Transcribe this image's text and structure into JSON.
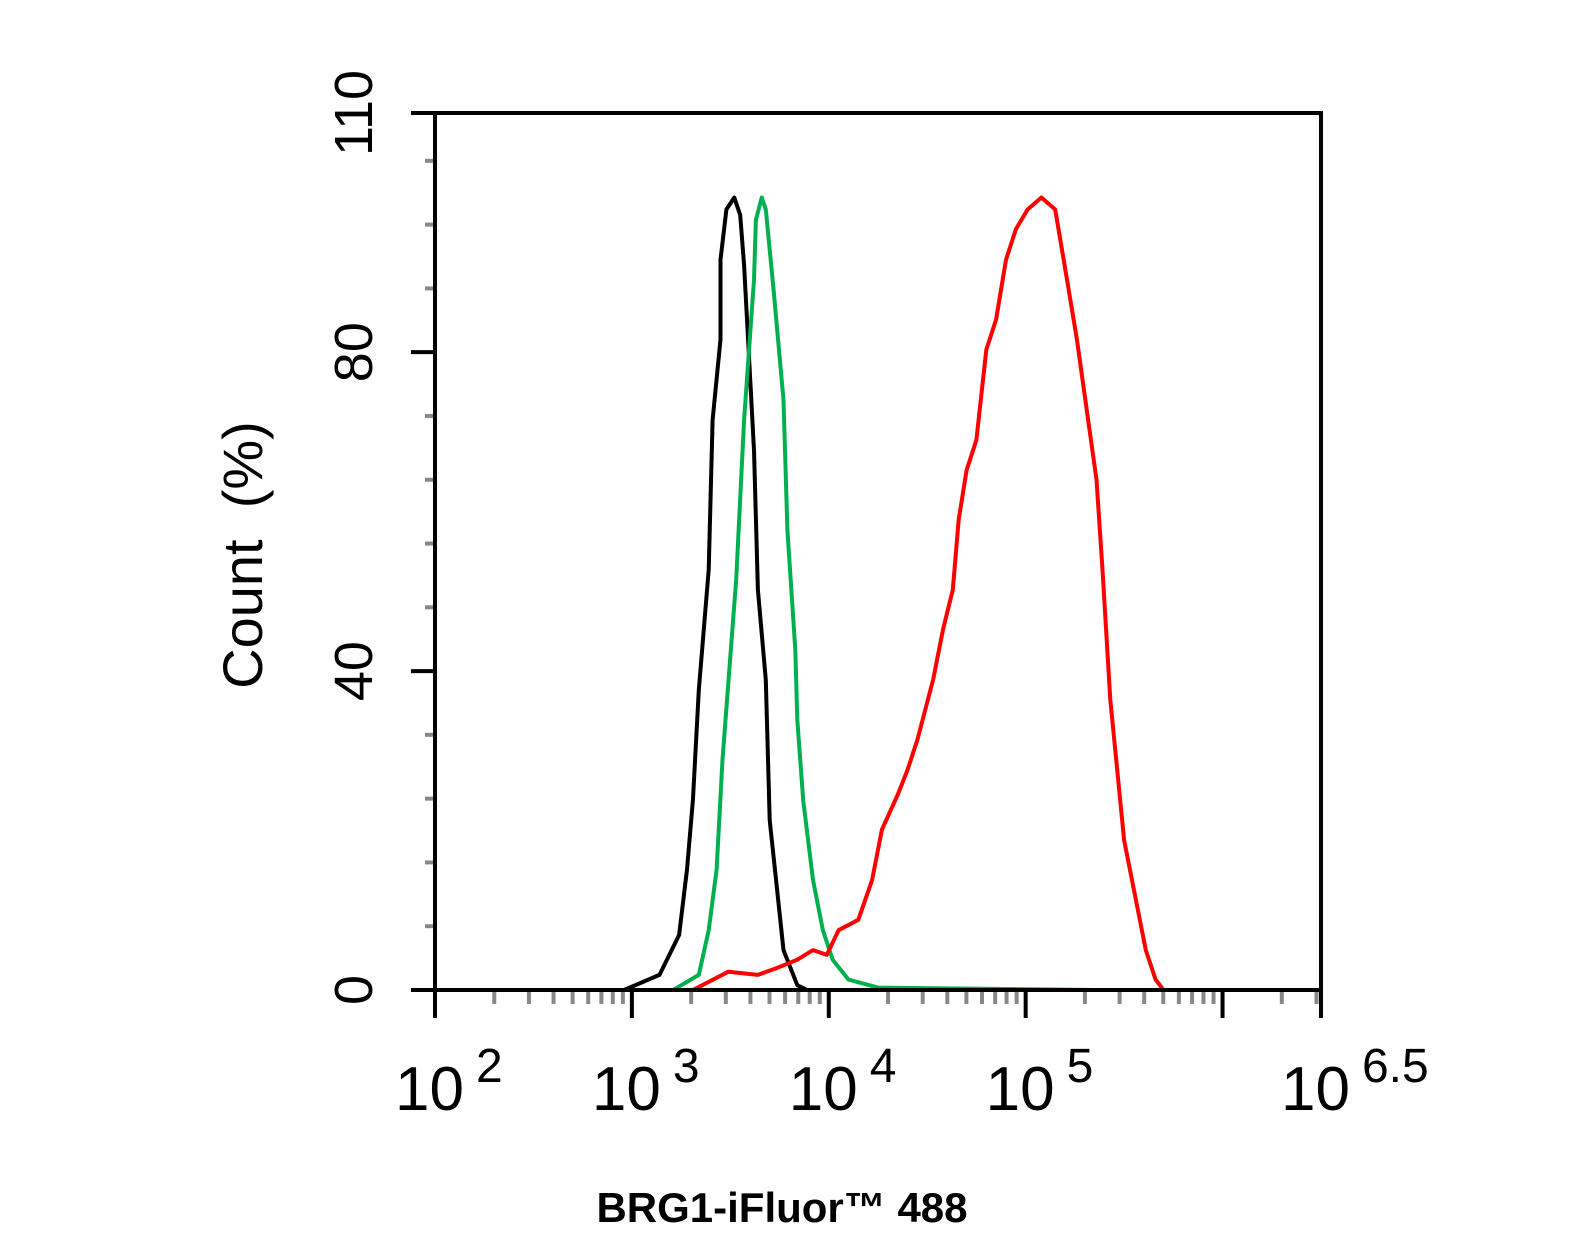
{
  "chart_data": {
    "type": "line",
    "title": "",
    "xlabel": "BRG1-iFluor™ 488",
    "ylabel": "Count  (%)",
    "xscale": "log10",
    "xlim_log10": [
      2,
      6.5
    ],
    "ylim": [
      0,
      110
    ],
    "x_tick_labels": [
      {
        "base": "10",
        "exp": "2",
        "log": 2
      },
      {
        "base": "10",
        "exp": "3",
        "log": 3
      },
      {
        "base": "10",
        "exp": "4",
        "log": 4
      },
      {
        "base": "10",
        "exp": "5",
        "log": 5
      },
      {
        "base": "10",
        "exp": "6.5",
        "log": 6.5
      }
    ],
    "x_major_ticks_log": [
      2,
      3,
      4,
      5,
      6,
      6.5
    ],
    "y_tick_labels": [
      "0",
      "40",
      "80",
      "110"
    ],
    "y_ticks": [
      0,
      40,
      80,
      110
    ],
    "y_minor_ticks": [
      8,
      16,
      24,
      32,
      48,
      56,
      64,
      72,
      88,
      96,
      104
    ],
    "grid": false,
    "legend": "none",
    "series": [
      {
        "name": "black",
        "color": "#000000",
        "x_log10": [
          2.96,
          3.14,
          3.24,
          3.28,
          3.31,
          3.34,
          3.39,
          3.41,
          3.45,
          3.45,
          3.48,
          3.52,
          3.55,
          3.57,
          3.62,
          3.64,
          3.68,
          3.7,
          3.77,
          3.84,
          3.89
        ],
        "y": [
          0,
          1.9,
          6.9,
          15.1,
          23.8,
          37.6,
          52.7,
          71.5,
          81.6,
          91.6,
          97.9,
          99.4,
          97.2,
          90.9,
          67.7,
          50.2,
          38.9,
          21.3,
          5.0,
          0.6,
          0
        ]
      },
      {
        "name": "green",
        "color": "#00b050",
        "x_log10": [
          3.21,
          3.34,
          3.39,
          3.43,
          3.46,
          3.53,
          3.57,
          3.62,
          3.63,
          3.66,
          3.68,
          3.72,
          3.77,
          3.79,
          3.83,
          3.84,
          3.87,
          3.92,
          3.97,
          4.02,
          4.1,
          4.25,
          5.36
        ],
        "y": [
          0,
          1.9,
          7.5,
          15.1,
          28.9,
          51.5,
          71.5,
          89.1,
          96.6,
          99.4,
          97.9,
          87.8,
          74.0,
          57.7,
          42.7,
          33.9,
          23.8,
          13.8,
          7.5,
          3.8,
          1.3,
          0.3,
          0
        ]
      },
      {
        "name": "red",
        "color": "#ff0000",
        "x_log10": [
          3.31,
          3.49,
          3.64,
          3.74,
          3.84,
          3.92,
          3.99,
          4.05,
          4.15,
          4.22,
          4.27,
          4.35,
          4.4,
          4.45,
          4.53,
          4.58,
          4.63,
          4.66,
          4.7,
          4.75,
          4.8,
          4.85,
          4.9,
          4.95,
          5.01,
          5.08,
          5.15,
          5.21,
          5.26,
          5.31,
          5.36,
          5.39,
          5.43,
          5.46,
          5.5,
          5.56,
          5.61,
          5.66,
          5.7
        ],
        "y": [
          0,
          2.3,
          1.9,
          2.8,
          3.8,
          5.0,
          4.4,
          7.5,
          8.8,
          13.8,
          20.1,
          24.5,
          27.6,
          31.4,
          38.9,
          45.2,
          50.2,
          59.0,
          65.2,
          69.0,
          80.3,
          84.1,
          91.6,
          95.4,
          97.9,
          99.4,
          97.9,
          89.1,
          81.6,
          72.8,
          64.0,
          52.7,
          36.4,
          28.9,
          18.8,
          11.3,
          5.0,
          1.3,
          0
        ]
      }
    ]
  }
}
